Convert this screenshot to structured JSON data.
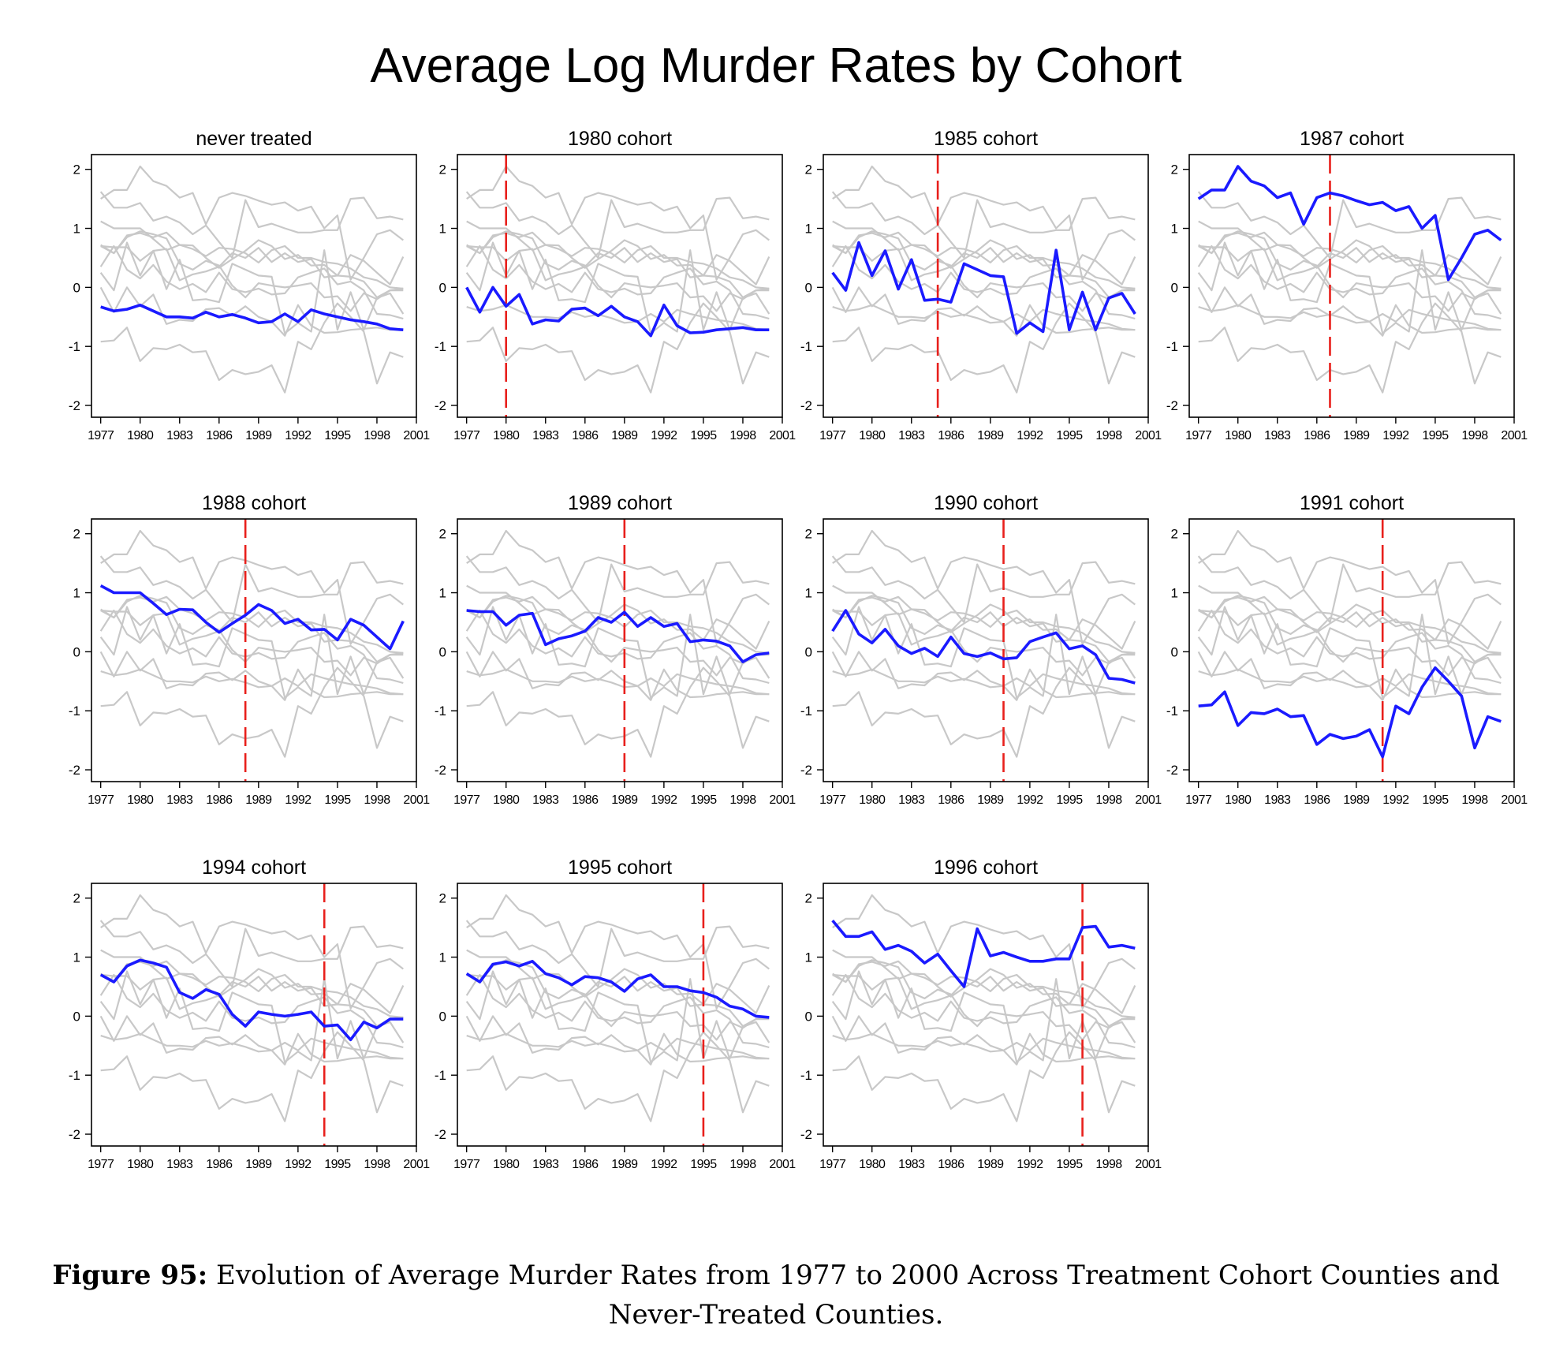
{
  "page_title": "Average Log Murder Rates by Cohort",
  "caption": {
    "label": "Figure 95:",
    "text": "Evolution of Average Murder Rates from 1977 to 2000 Across Treatment Cohort Counties and Never-Treated Counties."
  },
  "colors": {
    "highlight": "#1a1aff",
    "background_series": "#c8c8c8",
    "treatment_line": "#e8201c",
    "axis": "#000000"
  },
  "axis": {
    "x_ticks": [
      "1977",
      "1980",
      "1983",
      "1986",
      "1989",
      "1992",
      "1995",
      "1998",
      "2001"
    ],
    "y_ticks": [
      "2",
      "1",
      "0",
      "-1",
      "-2"
    ]
  },
  "chart_data": {
    "type": "line",
    "x": [
      1977,
      1978,
      1979,
      1980,
      1981,
      1982,
      1983,
      1984,
      1985,
      1986,
      1987,
      1988,
      1989,
      1990,
      1991,
      1992,
      1993,
      1994,
      1995,
      1996,
      1997,
      1998,
      1999,
      2000
    ],
    "xlim": [
      1976.3,
      2001
    ],
    "ylim": [
      -2.2,
      2.25
    ],
    "grid": false,
    "cohorts": [
      {
        "name": "never",
        "values": [
          -0.33,
          -0.4,
          -0.37,
          -0.3,
          -0.4,
          -0.5,
          -0.5,
          -0.52,
          -0.42,
          -0.5,
          -0.46,
          -0.52,
          -0.6,
          -0.58,
          -0.45,
          -0.58,
          -0.38,
          -0.45,
          -0.5,
          -0.55,
          -0.58,
          -0.62,
          -0.7,
          -0.72
        ]
      },
      {
        "name": "1980",
        "values": [
          0.0,
          -0.42,
          0.0,
          -0.32,
          -0.12,
          -0.62,
          -0.55,
          -0.57,
          -0.37,
          -0.35,
          -0.48,
          -0.32,
          -0.5,
          -0.58,
          -0.82,
          -0.3,
          -0.65,
          -0.77,
          -0.76,
          -0.72,
          -0.7,
          -0.68,
          -0.72,
          -0.72
        ]
      },
      {
        "name": "1985",
        "values": [
          0.25,
          -0.05,
          0.76,
          0.2,
          0.62,
          -0.03,
          0.47,
          -0.22,
          -0.2,
          -0.25,
          0.4,
          0.3,
          0.2,
          0.18,
          -0.78,
          -0.6,
          -0.75,
          0.63,
          -0.72,
          -0.08,
          -0.72,
          -0.18,
          -0.1,
          -0.45
        ]
      },
      {
        "name": "1987",
        "values": [
          1.5,
          1.65,
          1.65,
          2.05,
          1.8,
          1.72,
          1.52,
          1.6,
          1.07,
          1.52,
          1.6,
          1.55,
          1.47,
          1.4,
          1.44,
          1.3,
          1.37,
          1.0,
          1.22,
          0.13,
          0.5,
          0.9,
          0.97,
          0.8
        ]
      },
      {
        "name": "1988",
        "values": [
          1.12,
          1.0,
          1.0,
          1.0,
          0.82,
          0.63,
          0.72,
          0.71,
          0.5,
          0.33,
          0.48,
          0.62,
          0.8,
          0.7,
          0.48,
          0.55,
          0.37,
          0.38,
          0.2,
          0.55,
          0.45,
          0.25,
          0.05,
          0.52
        ]
      },
      {
        "name": "1989",
        "values": [
          0.7,
          0.68,
          0.68,
          0.45,
          0.62,
          0.65,
          0.12,
          0.22,
          0.27,
          0.35,
          0.58,
          0.5,
          0.67,
          0.43,
          0.58,
          0.43,
          0.48,
          0.17,
          0.2,
          0.18,
          0.1,
          -0.17,
          -0.05,
          -0.02
        ]
      },
      {
        "name": "1990",
        "values": [
          0.35,
          0.7,
          0.3,
          0.15,
          0.38,
          0.1,
          -0.03,
          0.06,
          -0.08,
          0.25,
          -0.03,
          -0.08,
          -0.02,
          -0.12,
          -0.1,
          0.17,
          0.25,
          0.32,
          0.05,
          0.1,
          -0.05,
          -0.45,
          -0.47,
          -0.53
        ]
      },
      {
        "name": "1991",
        "values": [
          -0.92,
          -0.9,
          -0.68,
          -1.25,
          -1.03,
          -1.05,
          -0.97,
          -1.1,
          -1.08,
          -1.57,
          -1.4,
          -1.47,
          -1.43,
          -1.32,
          -1.78,
          -0.92,
          -1.05,
          -0.6,
          -0.27,
          -0.5,
          -0.75,
          -1.63,
          -1.1,
          -1.18
        ]
      },
      {
        "name": "1994",
        "values": [
          0.7,
          0.58,
          0.85,
          0.95,
          0.9,
          0.83,
          0.4,
          0.3,
          0.45,
          0.37,
          0.03,
          -0.17,
          0.07,
          0.03,
          0.0,
          0.03,
          0.07,
          -0.17,
          -0.15,
          -0.4,
          -0.1,
          -0.2,
          -0.05,
          -0.05
        ]
      },
      {
        "name": "1995",
        "values": [
          0.72,
          0.58,
          0.88,
          0.92,
          0.85,
          0.93,
          0.72,
          0.65,
          0.53,
          0.67,
          0.65,
          0.58,
          0.42,
          0.63,
          0.7,
          0.5,
          0.5,
          0.43,
          0.4,
          0.32,
          0.17,
          0.12,
          0.0,
          -0.02
        ]
      },
      {
        "name": "1996",
        "values": [
          1.62,
          1.35,
          1.35,
          1.43,
          1.13,
          1.2,
          1.1,
          0.9,
          1.05,
          0.77,
          0.5,
          1.48,
          1.02,
          1.08,
          1.0,
          0.93,
          0.93,
          0.97,
          0.97,
          1.5,
          1.52,
          1.17,
          1.2,
          1.15
        ]
      }
    ],
    "panels": [
      {
        "title": "never treated",
        "series": "never",
        "treatment_year": null
      },
      {
        "title": "1980 cohort",
        "series": "1980",
        "treatment_year": 1980
      },
      {
        "title": "1985 cohort",
        "series": "1985",
        "treatment_year": 1985
      },
      {
        "title": "1987 cohort",
        "series": "1987",
        "treatment_year": 1987
      },
      {
        "title": "1988 cohort",
        "series": "1988",
        "treatment_year": 1988
      },
      {
        "title": "1989 cohort",
        "series": "1989",
        "treatment_year": 1989
      },
      {
        "title": "1990 cohort",
        "series": "1990",
        "treatment_year": 1990
      },
      {
        "title": "1991 cohort",
        "series": "1991",
        "treatment_year": 1991
      },
      {
        "title": "1994 cohort",
        "series": "1994",
        "treatment_year": 1994
      },
      {
        "title": "1995 cohort",
        "series": "1995",
        "treatment_year": 1995
      },
      {
        "title": "1996 cohort",
        "series": "1996",
        "treatment_year": 1996
      }
    ]
  }
}
